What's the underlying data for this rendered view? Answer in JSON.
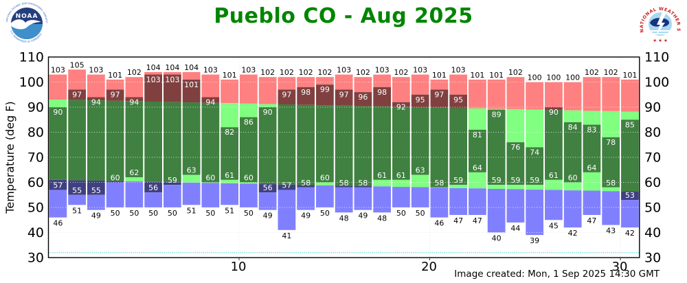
{
  "header": {
    "title": "Pueblo CO - Aug 2025",
    "noaa_logo": {
      "label": "NOAA",
      "text_top": "NATIONAL OCEANIC AND ATMOSPHERIC ADMINISTRATION",
      "text_bottom": "U.S. DEPARTMENT OF COMMERCE"
    },
    "nws_logo": {
      "ring_text": "NATIONAL WEATHER SERVICE",
      "stars": "★ ★ ★"
    }
  },
  "footer": {
    "created": "Image created: Mon, 1 Sep 2025 14:30 GMT"
  },
  "chart_data": {
    "type": "bar",
    "title": "Pueblo CO - Aug 2025",
    "xlabel": "",
    "ylabel": "Temperature (deg F)",
    "ylim": [
      30,
      110
    ],
    "yticks": [
      110,
      100,
      90,
      80,
      70,
      60,
      50,
      40,
      30
    ],
    "xticks": [
      10,
      20,
      30
    ],
    "grid": "dotted",
    "legend": {
      "shown": false
    },
    "freezing_line": 32,
    "x": [
      1,
      2,
      3,
      4,
      5,
      6,
      7,
      8,
      9,
      10,
      11,
      12,
      13,
      14,
      15,
      16,
      17,
      18,
      19,
      20,
      21,
      22,
      23,
      24,
      25,
      26,
      27,
      28,
      29,
      30,
      31
    ],
    "series": [
      {
        "name": "record_high",
        "values": [
          103,
          105,
          103,
          101,
          102,
          104,
          104,
          104,
          103,
          101,
          103,
          102,
          102,
          102,
          102,
          103,
          102,
          103,
          102,
          103,
          101,
          103,
          101,
          101,
          102,
          100,
          100,
          100,
          102,
          102,
          101
        ]
      },
      {
        "name": "observed_high",
        "values": [
          90,
          97,
          94,
          97,
          94,
          103,
          103,
          101,
          94,
          82,
          86,
          90,
          97,
          98,
          99,
          97,
          96,
          98,
          92,
          95,
          97,
          95,
          81,
          89,
          76,
          74,
          90,
          84,
          83,
          78,
          85
        ]
      },
      {
        "name": "observed_low",
        "values": [
          57,
          55,
          55,
          60,
          62,
          56,
          59,
          63,
          60,
          61,
          60,
          56,
          57,
          58,
          60,
          58,
          58,
          61,
          61,
          63,
          58,
          59,
          64,
          59,
          59,
          59,
          61,
          60,
          64,
          58,
          53
        ]
      },
      {
        "name": "record_low",
        "values": [
          46,
          51,
          49,
          50,
          50,
          50,
          50,
          51,
          50,
          51,
          50,
          49,
          41,
          49,
          50,
          48,
          49,
          48,
          50,
          50,
          46,
          47,
          47,
          40,
          44,
          39,
          45,
          42,
          47,
          43,
          42
        ]
      },
      {
        "name": "normal_high_est",
        "values": [
          93.0,
          92.8,
          92.7,
          92.5,
          92.4,
          92.2,
          92.0,
          91.9,
          91.7,
          91.6,
          91.4,
          91.2,
          91.1,
          90.9,
          90.8,
          90.6,
          90.4,
          90.3,
          90.1,
          90.0,
          89.8,
          89.6,
          89.5,
          89.3,
          89.2,
          89.0,
          88.8,
          88.7,
          88.5,
          88.4,
          88.2
        ]
      },
      {
        "name": "normal_low_est",
        "values": [
          61.0,
          60.8,
          60.7,
          60.5,
          60.4,
          60.2,
          60.1,
          59.9,
          59.8,
          59.6,
          59.5,
          59.3,
          59.1,
          59.0,
          58.8,
          58.7,
          58.5,
          58.4,
          58.2,
          58.1,
          57.9,
          57.7,
          57.6,
          57.4,
          57.3,
          57.1,
          57.0,
          56.8,
          56.7,
          56.5,
          56.3
        ]
      }
    ],
    "colors": {
      "record_high_band": "#FF8080",
      "normal_band": "#80FF80",
      "record_low_band": "#8080FF",
      "observed_above_normal": "#804040",
      "observed_within_normal": "#408040",
      "observed_below_normal": "#404080",
      "freezing_line": "#8FE8E8",
      "grid": "#999999",
      "frame": "#000000",
      "title": "#008500"
    }
  }
}
